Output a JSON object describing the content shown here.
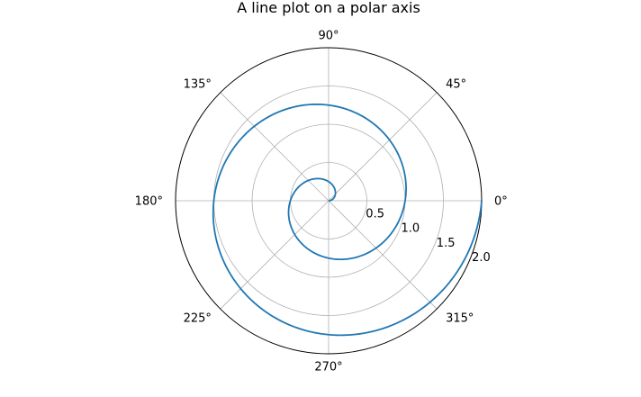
{
  "chart_data": {
    "type": "line",
    "projection": "polar",
    "title": "A line plot on a polar axis",
    "theta_tick_labels": [
      "0°",
      "45°",
      "90°",
      "135°",
      "180°",
      "225°",
      "270°",
      "315°"
    ],
    "theta_ticks_deg": [
      0,
      45,
      90,
      135,
      180,
      225,
      270,
      315
    ],
    "r_ticks": [
      0.5,
      1.0,
      1.5,
      2.0
    ],
    "r_tick_labels": [
      "0.5",
      "1.0",
      "1.5",
      "2.0"
    ],
    "rlim": [
      0,
      2.0
    ],
    "grid": true,
    "series": [
      {
        "color": "#1f77b4",
        "r": [
          0,
          0.1,
          0.2,
          0.3,
          0.4,
          0.5,
          0.6,
          0.7,
          0.8,
          0.9,
          1.0,
          1.1,
          1.2,
          1.3,
          1.4,
          1.5,
          1.6,
          1.7,
          1.8,
          1.9,
          2.0
        ],
        "theta_formula": "theta = 2 * pi * r"
      }
    ]
  }
}
